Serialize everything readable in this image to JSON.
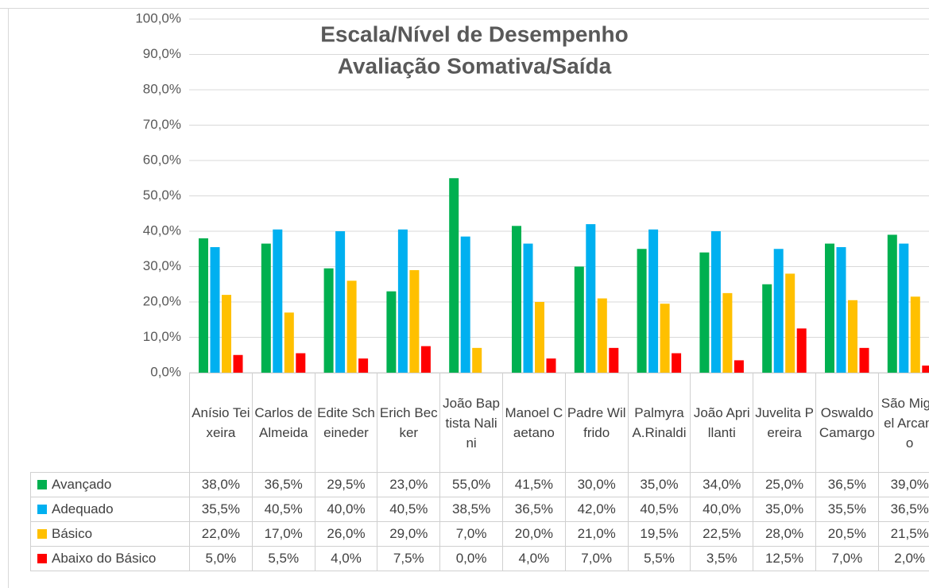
{
  "chart_data": {
    "type": "bar",
    "title": "Escala/Nível de Desempenho",
    "subtitle": "Avaliação Somativa/Saída",
    "categories": [
      "Anísio Teixeira",
      "Carlos de Almeida",
      "Edite Scheineder",
      "Erich Becker",
      "João Baptista Nalini",
      "Manoel Caetano",
      "Padre Wilfrido",
      "Palmyra A.Rinaldi",
      "João Aprillanti",
      "Juvelita Pereira",
      "Oswaldo Camargo",
      "São Miguel Arcanjo"
    ],
    "series": [
      {
        "name": "Avançado",
        "color": "#00b050",
        "values": [
          38,
          36.5,
          29.5,
          23,
          55,
          41.5,
          30,
          35,
          34,
          25,
          36.5,
          39
        ],
        "value_labels": [
          "38,0%",
          "36,5%",
          "29,5%",
          "23,0%",
          "55,0%",
          "41,5%",
          "30,0%",
          "35,0%",
          "34,0%",
          "25,0%",
          "36,5%",
          "39,0%"
        ]
      },
      {
        "name": "Adequado",
        "color": "#00b0f0",
        "values": [
          35.5,
          40.5,
          40,
          40.5,
          38.5,
          36.5,
          42,
          40.5,
          40,
          35,
          35.5,
          36.5
        ],
        "value_labels": [
          "35,5%",
          "40,5%",
          "40,0%",
          "40,5%",
          "38,5%",
          "36,5%",
          "42,0%",
          "40,5%",
          "40,0%",
          "35,0%",
          "35,5%",
          "36,5%"
        ]
      },
      {
        "name": "Básico",
        "color": "#ffc000",
        "values": [
          22,
          17,
          26,
          29,
          7,
          20,
          21,
          19.5,
          22.5,
          28,
          20.5,
          21.5
        ],
        "value_labels": [
          "22,0%",
          "17,0%",
          "26,0%",
          "29,0%",
          "7,0%",
          "20,0%",
          "21,0%",
          "19,5%",
          "22,5%",
          "28,0%",
          "20,5%",
          "21,5%"
        ]
      },
      {
        "name": "Abaixo do Básico",
        "color": "#ff0000",
        "values": [
          5,
          5.5,
          4,
          7.5,
          0,
          4,
          7,
          5.5,
          3.5,
          12.5,
          7,
          2
        ],
        "value_labels": [
          "5,0%",
          "5,5%",
          "4,0%",
          "7,5%",
          "0,0%",
          "4,0%",
          "7,0%",
          "5,5%",
          "3,5%",
          "12,5%",
          "7,0%",
          "2,0%"
        ]
      }
    ],
    "ylim": [
      0,
      100
    ],
    "yticks": [
      {
        "value": 0,
        "label": "0,0%"
      },
      {
        "value": 10,
        "label": "10,0%"
      },
      {
        "value": 20,
        "label": "20,0%"
      },
      {
        "value": 30,
        "label": "30,0%"
      },
      {
        "value": 40,
        "label": "40,0%"
      },
      {
        "value": 50,
        "label": "50,0%"
      },
      {
        "value": 60,
        "label": "60,0%"
      },
      {
        "value": 70,
        "label": "70,0%"
      },
      {
        "value": 80,
        "label": "80,0%"
      },
      {
        "value": 90,
        "label": "90,0%"
      },
      {
        "value": 100,
        "label": "100,0%"
      }
    ],
    "grid": true
  }
}
